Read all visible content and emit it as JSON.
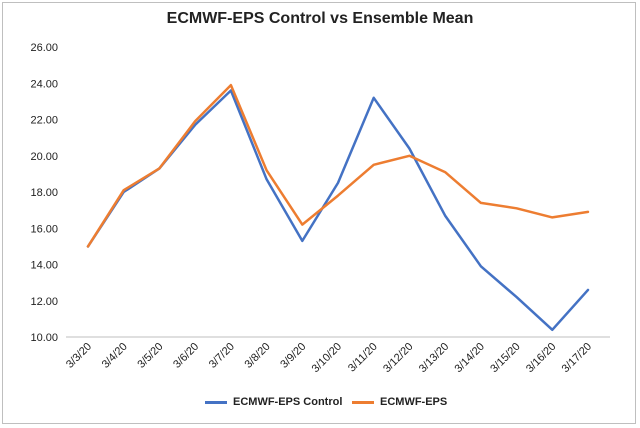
{
  "chart_data": {
    "type": "line",
    "title": "ECMWF-EPS Control vs Ensemble Mean",
    "xlabel": "",
    "ylabel": "",
    "ylim": [
      10,
      26
    ],
    "yticks": [
      "10.00",
      "12.00",
      "14.00",
      "16.00",
      "18.00",
      "20.00",
      "22.00",
      "24.00",
      "26.00"
    ],
    "categories": [
      "3/3/20",
      "3/4/20",
      "3/5/20",
      "3/6/20",
      "3/7/20",
      "3/8/20",
      "3/9/20",
      "3/10/20",
      "3/11/20",
      "3/12/20",
      "3/13/20",
      "3/14/20",
      "3/15/20",
      "3/16/20",
      "3/17/20"
    ],
    "series": [
      {
        "name": "ECMWF-EPS Control",
        "color": "#4472c4",
        "values": [
          15.0,
          18.0,
          19.3,
          21.7,
          23.6,
          18.7,
          15.3,
          18.5,
          23.2,
          20.4,
          16.7,
          13.9,
          12.2,
          10.4,
          12.6
        ]
      },
      {
        "name": "ECMWF-EPS",
        "color": "#ed7d31",
        "values": [
          15.0,
          18.1,
          19.3,
          21.9,
          23.9,
          19.2,
          16.2,
          17.8,
          19.5,
          20.0,
          19.1,
          17.4,
          17.1,
          16.6,
          16.9
        ]
      }
    ],
    "grid": false,
    "legend": "bottom"
  }
}
